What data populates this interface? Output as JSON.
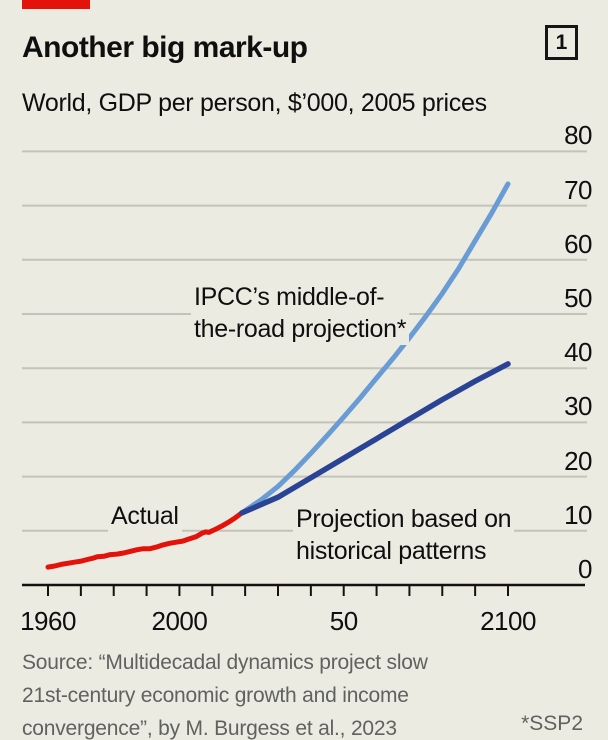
{
  "header": {
    "title": "Another big mark-up",
    "index_label": "1",
    "subtitle": "World, GDP per person, $’000, 2005 prices"
  },
  "colors": {
    "background": "#ECEBE1",
    "accent_red": "#E3120B",
    "light_blue": "#699BD4",
    "dark_blue": "#2A4394",
    "gridline": "#C2C3BB",
    "axis": "#121212",
    "source_gray": "#60625F"
  },
  "chart_data": {
    "type": "line",
    "title": "Another big mark-up",
    "subtitle": "World, GDP per person, $’000, 2005 prices",
    "x_axis": {
      "range": [
        1960,
        2100
      ],
      "tick_years": [
        1960,
        1970,
        1980,
        1990,
        2000,
        2010,
        2020,
        2030,
        2040,
        2050,
        2060,
        2070,
        2080,
        2090,
        2100
      ],
      "labeled_years": [
        1960,
        2000,
        2050,
        2100
      ],
      "labels": [
        "1960",
        "2000",
        "50",
        "2100"
      ]
    },
    "y_axis": {
      "range": [
        0,
        80
      ],
      "ticks": [
        0,
        10,
        20,
        30,
        40,
        50,
        60,
        70,
        80
      ],
      "gridline_values": [
        10,
        20,
        30,
        40,
        50,
        60,
        70,
        80
      ],
      "side": "right"
    },
    "series": [
      {
        "name": "Actual",
        "color": "#E3120B",
        "x": [
          1960,
          1962,
          1964,
          1966,
          1968,
          1970,
          1972,
          1974,
          1975,
          1977,
          1979,
          1981,
          1983,
          1985,
          1987,
          1989,
          1991,
          1993,
          1995,
          1997,
          1999,
          2001,
          2003,
          2005,
          2007,
          2008,
          2009,
          2010,
          2011,
          2013,
          2015,
          2017,
          2019
        ],
        "values": [
          3.3,
          3.5,
          3.8,
          4.0,
          4.2,
          4.4,
          4.7,
          5.0,
          5.2,
          5.3,
          5.6,
          5.7,
          5.9,
          6.2,
          6.5,
          6.7,
          6.7,
          7.0,
          7.4,
          7.7,
          7.9,
          8.1,
          8.5,
          8.9,
          9.6,
          9.8,
          9.7,
          10.0,
          10.3,
          10.9,
          11.6,
          12.4,
          13.3
        ]
      },
      {
        "name": "IPCC’s middle-of-the-road projection* (SSP2)",
        "color": "#699BD4",
        "x": [
          2019,
          2025,
          2030,
          2035,
          2040,
          2045,
          2050,
          2055,
          2060,
          2065,
          2070,
          2075,
          2080,
          2085,
          2090,
          2095,
          2100
        ],
        "values": [
          13.3,
          15.8,
          18.2,
          21.1,
          24.3,
          27.6,
          31.0,
          34.5,
          38.2,
          41.8,
          45.6,
          49.6,
          53.8,
          58.4,
          63.5,
          68.6,
          74.0
        ]
      },
      {
        "name": "Projection based on historical patterns",
        "color": "#2A4394",
        "x": [
          2019,
          2030,
          2040,
          2050,
          2060,
          2070,
          2080,
          2090,
          2100
        ],
        "values": [
          13.3,
          16.2,
          19.8,
          23.4,
          27.0,
          30.6,
          34.2,
          37.6,
          40.8
        ]
      }
    ],
    "annotations": [
      {
        "id": "ipcc",
        "text": "IPCC’s middle-of-\nthe-road projection*"
      },
      {
        "id": "actual",
        "text": "Actual"
      },
      {
        "id": "projection",
        "text": "Projection based on\nhistorical patterns"
      }
    ],
    "legend": "none",
    "grid": "horizontal"
  },
  "source": {
    "lines": [
      "Source: “Multidecadal dynamics project slow",
      "21st-century economic growth and income",
      "convergence”, by M. Burgess et al., 2023"
    ],
    "footnote": "*SSP2"
  }
}
